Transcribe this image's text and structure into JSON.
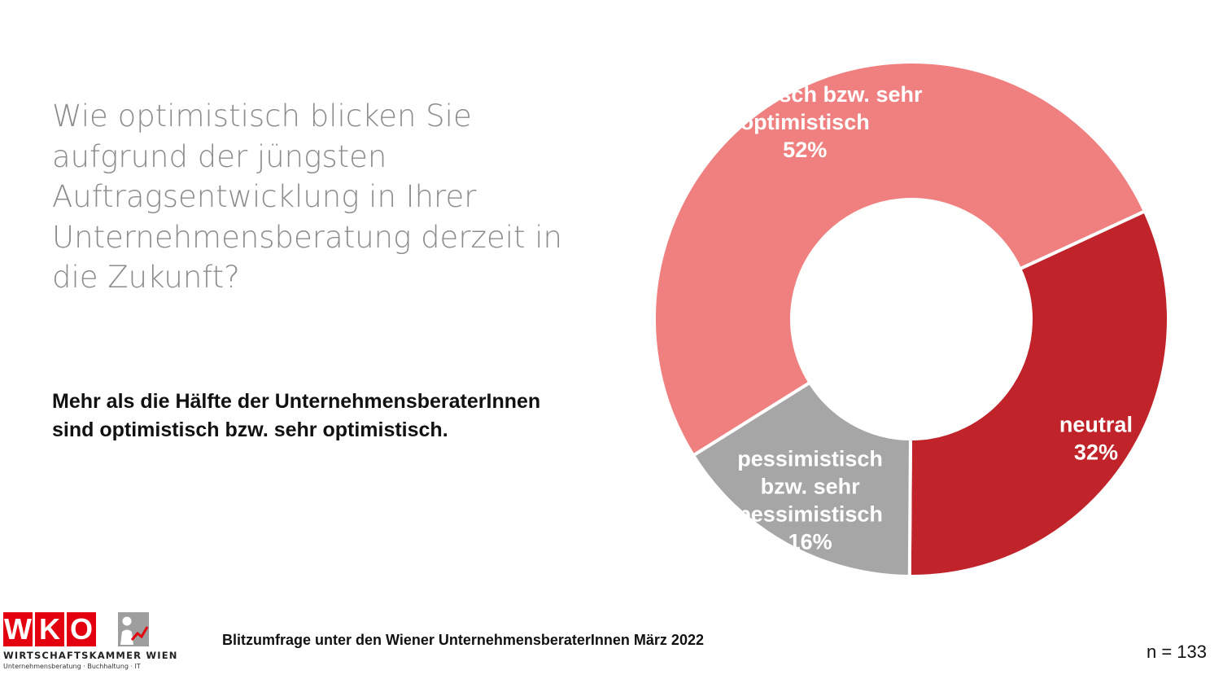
{
  "question": "Wie optimistisch blicken Sie aufgrund der jüngsten Auftragsentwicklung in Ihrer Unternehmensberatung derzeit in die Zukunft?",
  "summary": "Mehr als die Hälfte der UnternehmensberaterInnen sind optimistisch bzw. sehr optimistisch.",
  "source": "Blitzumfrage unter den Wiener UnternehmensberaterInnen März 2022",
  "sample_size": "n = 133",
  "logo": {
    "letters": [
      "W",
      "K",
      "O"
    ],
    "line1": "WIRTSCHAFTSKAMMER WIEN",
    "line2": "Unternehmensberatung · Buchhaltung · IT",
    "pictogram": "person-chart-icon"
  },
  "chart_data": {
    "type": "pie",
    "variant": "donut",
    "unit": "%",
    "start_angle_deg": 238,
    "slices": [
      {
        "label_lines": [
          "optimistisch bzw. sehr",
          "optimistisch"
        ],
        "value": 52,
        "value_label": "52%",
        "color": "#f08080"
      },
      {
        "label_lines": [
          "neutral"
        ],
        "value": 32,
        "value_label": "32%",
        "color": "#c0242a"
      },
      {
        "label_lines": [
          "pessimistisch",
          "bzw. sehr",
          "pessimistisch"
        ],
        "value": 16,
        "value_label": "16%",
        "color": "#a6a6a6"
      }
    ]
  }
}
